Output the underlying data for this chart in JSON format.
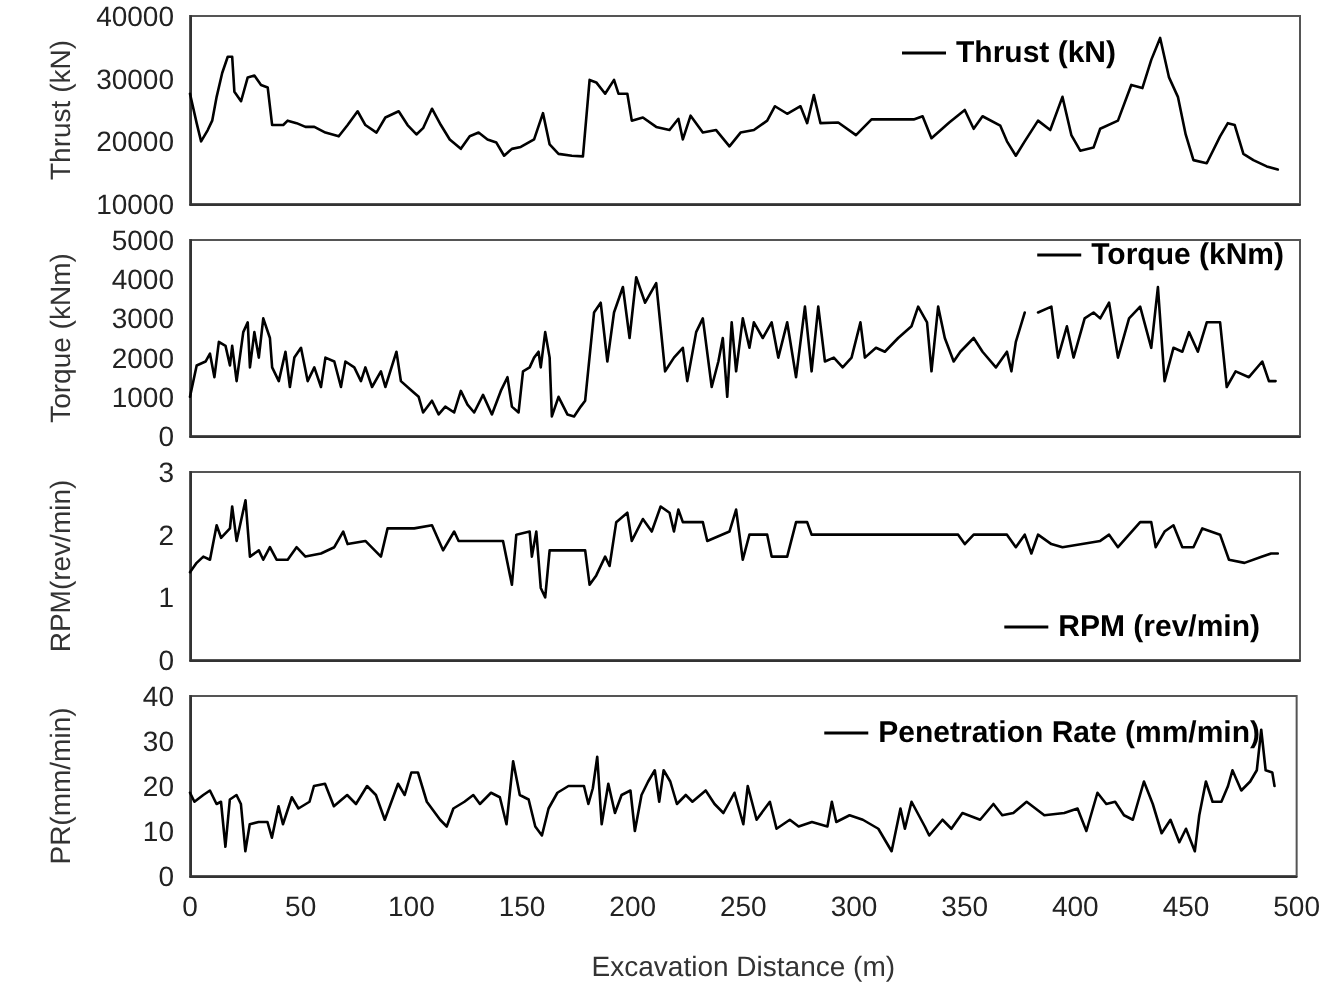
{
  "chart_data": [
    {
      "type": "line",
      "ylabel": "Thrust (kN)",
      "xlim": [
        0,
        500
      ],
      "ylim": [
        10000,
        40000
      ],
      "yticks": [
        10000,
        20000,
        30000,
        40000
      ],
      "tick_labels": "y",
      "grid": false,
      "legend": "top right",
      "marker": "none",
      "line_style": "solid",
      "series": [
        {
          "name": "Thrust (kN)",
          "color": "#000000",
          "x": [
            0,
            3,
            5,
            8,
            10,
            12,
            14.5,
            17,
            19,
            20,
            23,
            26,
            29,
            32,
            35,
            37,
            42,
            44,
            48,
            52,
            56,
            61,
            67,
            71,
            75.5,
            79,
            84,
            88,
            94,
            98,
            102,
            105,
            109,
            113,
            117,
            122,
            126,
            130,
            134,
            138,
            141.5,
            145,
            149,
            155,
            159,
            162,
            166,
            172,
            177,
            180,
            183,
            187,
            191,
            193,
            197,
            199,
            204,
            210,
            216,
            220,
            222,
            225.5,
            231,
            237,
            243,
            248,
            254,
            260,
            263.5,
            269,
            275,
            278,
            281,
            284,
            292,
            300,
            307,
            319,
            326,
            330,
            334,
            342,
            349,
            353,
            357,
            365,
            368,
            372,
            376,
            382,
            387.5,
            393,
            397,
            401,
            407,
            410,
            418,
            424,
            429,
            433,
            437,
            441,
            445,
            448.5,
            452,
            458,
            464,
            467.5,
            470.6,
            474.5,
            479,
            485,
            490
          ],
          "values": [
            27600,
            22900,
            20000,
            21800,
            23300,
            27100,
            30900,
            33500,
            33500,
            27900,
            26400,
            30200,
            30500,
            29000,
            28600,
            22600,
            22600,
            23300,
            22900,
            22300,
            22300,
            21400,
            20800,
            22600,
            24800,
            22600,
            21400,
            23800,
            24800,
            22600,
            21100,
            22100,
            25200,
            22600,
            20300,
            18800,
            20800,
            21400,
            20300,
            19800,
            17700,
            18800,
            19100,
            20300,
            24500,
            19500,
            18000,
            17700,
            17600,
            29800,
            29400,
            27600,
            29800,
            27600,
            27600,
            23300,
            23800,
            22300,
            21800,
            23600,
            20300,
            24100,
            21400,
            21800,
            19200,
            21400,
            21800,
            23300,
            25600,
            24400,
            25600,
            22900,
            27400,
            22900,
            23000,
            21000,
            23500,
            23500,
            23500,
            24000,
            20500,
            23000,
            25000,
            22000,
            24000,
            22500,
            20000,
            17700,
            20000,
            23300,
            21800,
            27100,
            21000,
            18500,
            19000,
            22000,
            23300,
            29000,
            28500,
            33000,
            36500,
            30200,
            27100,
            21100,
            17000,
            16500,
            20800,
            22900,
            22600,
            18000,
            17000,
            16000,
            15500
          ]
        }
      ]
    },
    {
      "type": "line",
      "ylabel": "Torque (kNm)",
      "xlim": [
        0,
        500
      ],
      "ylim": [
        0,
        5000
      ],
      "yticks": [
        0,
        1000,
        2000,
        3000,
        4000,
        5000
      ],
      "tick_labels": "y",
      "grid": false,
      "legend": "top right",
      "marker": "none",
      "line_style": "solid",
      "series": [
        {
          "name": "Torque (kNm)",
          "color": "#000000",
          "x": [
            0,
            3,
            7,
            9,
            11,
            13,
            16,
            18,
            19,
            21,
            24,
            26,
            27,
            29,
            31,
            33,
            36,
            37,
            40,
            43,
            45,
            47,
            50,
            53,
            56,
            59,
            61,
            65,
            68,
            70,
            74,
            77,
            79,
            82,
            86,
            88,
            93,
            95,
            100,
            103,
            105,
            109,
            112,
            115,
            119,
            122,
            125,
            128,
            132,
            136,
            140,
            143,
            145,
            148,
            150,
            153,
            155,
            157,
            158,
            160,
            162,
            163,
            166,
            170,
            173,
            176,
            178,
            182,
            185,
            188,
            191,
            195,
            198,
            201,
            205,
            210,
            214,
            218,
            222,
            224,
            228,
            231,
            235,
            238,
            240,
            242,
            244,
            246,
            249,
            252,
            254,
            258,
            262,
            265,
            269,
            273,
            277,
            280,
            283,
            286,
            290,
            294,
            298,
            302,
            304,
            309,
            313,
            319,
            325,
            328,
            332,
            334,
            337,
            340,
            344,
            347,
            353,
            357,
            363,
            368,
            370,
            372,
            376,
            379,
            382,
            388,
            391,
            395,
            398,
            403,
            407,
            410,
            414,
            418,
            423,
            428,
            433,
            436,
            439,
            443,
            447,
            450,
            454,
            458,
            464,
            467,
            471,
            477,
            483,
            486,
            489
          ],
          "values": [
            1000,
            1800,
            1900,
            2100,
            1500,
            2400,
            2300,
            1800,
            2300,
            1400,
            2650,
            2900,
            1750,
            2650,
            2000,
            3000,
            2500,
            1750,
            1400,
            2150,
            1250,
            2000,
            2250,
            1400,
            1750,
            1250,
            2000,
            1900,
            1250,
            1900,
            1750,
            1400,
            1750,
            1250,
            1650,
            1250,
            2150,
            1400,
            1150,
            1000,
            600,
            900,
            550,
            750,
            600,
            1150,
            800,
            600,
            1050,
            550,
            1150,
            1500,
            750,
            600,
            1650,
            1750,
            2000,
            2150,
            1750,
            2650,
            2000,
            500,
            1000,
            550,
            500,
            750,
            900,
            3150,
            3400,
            1900,
            3150,
            3800,
            2500,
            4050,
            3400,
            3900,
            1650,
            2000,
            2250,
            1400,
            2650,
            3000,
            1250,
            1900,
            2500,
            1000,
            2900,
            1650,
            3000,
            2250,
            2900,
            2500,
            2900,
            2000,
            2900,
            1500,
            3300,
            1650,
            3300,
            1900,
            2000,
            1750,
            2000,
            2900,
            2000,
            2250,
            2150,
            2500,
            2800,
            3300,
            2900,
            1650,
            3300,
            2500,
            1900,
            2150,
            2500,
            2150,
            1750,
            2150,
            1650,
            2400,
            3150,
            null,
            3150,
            3300,
            2000,
            2800,
            2000,
            3000,
            3150,
            3000,
            3400,
            2000,
            3000,
            3300,
            2250,
            3800,
            1400,
            2250,
            2150,
            2650,
            2150,
            2900,
            2900,
            1250,
            1650,
            1500,
            1900,
            1400,
            1400
          ]
        }
      ]
    },
    {
      "type": "line",
      "ylabel": "RPM(rev/min)",
      "xlim": [
        0,
        500
      ],
      "ylim": [
        0,
        3
      ],
      "yticks": [
        0,
        1,
        2,
        3
      ],
      "tick_labels": "y",
      "grid": false,
      "legend": "bottom right",
      "marker": "none",
      "line_style": "solid",
      "series": [
        {
          "name": "RPM (rev/min)",
          "color": "#000000",
          "x": [
            0,
            3,
            6,
            9,
            12,
            14,
            18,
            19,
            21,
            25,
            27,
            31,
            33,
            36,
            39,
            44,
            48,
            52,
            59,
            65,
            69,
            71,
            79,
            86,
            89,
            94,
            101,
            109,
            114,
            119,
            121,
            141,
            145,
            147,
            153,
            154,
            156,
            158,
            160,
            162,
            178,
            180,
            183,
            187,
            189,
            192,
            197,
            199,
            204,
            208,
            212,
            216,
            218,
            220,
            222,
            231,
            233,
            243,
            246,
            249,
            252,
            260,
            262,
            269,
            273,
            278,
            280,
            288,
            346,
            349,
            353,
            368,
            372,
            376,
            379,
            382,
            388,
            393,
            410,
            414,
            418,
            428,
            433,
            435,
            439,
            443,
            447,
            452,
            456,
            464,
            468,
            475,
            483,
            487,
            490
          ],
          "values": [
            1.4,
            1.55,
            1.65,
            1.6,
            2.15,
            1.95,
            2.1,
            2.45,
            1.9,
            2.55,
            1.65,
            1.75,
            1.6,
            1.8,
            1.6,
            1.6,
            1.8,
            1.65,
            1.7,
            1.8,
            2.05,
            1.85,
            1.9,
            1.65,
            2.1,
            2.1,
            2.1,
            2.15,
            1.75,
            2.05,
            1.9,
            1.9,
            1.2,
            2.0,
            2.05,
            1.65,
            2.05,
            1.15,
            1.0,
            1.75,
            1.75,
            1.2,
            1.35,
            1.65,
            1.5,
            2.2,
            2.35,
            1.9,
            2.25,
            2.05,
            2.45,
            2.35,
            2.05,
            2.4,
            2.2,
            2.2,
            1.9,
            2.05,
            2.4,
            1.6,
            2.0,
            2.0,
            1.65,
            1.65,
            2.2,
            2.2,
            2.0,
            2.0,
            2.0,
            1.85,
            2.0,
            2.0,
            1.8,
            2.0,
            1.7,
            2.0,
            1.85,
            1.8,
            1.9,
            2.0,
            1.8,
            2.2,
            2.2,
            1.8,
            2.05,
            2.15,
            1.8,
            1.8,
            2.1,
            2.0,
            1.6,
            1.55,
            1.65,
            1.7,
            1.7
          ]
        }
      ]
    },
    {
      "type": "line",
      "xlabel": "Excavation Distance (m)",
      "ylabel": "PR(mm/min)",
      "xlim": [
        0,
        500
      ],
      "xticks": [
        0,
        50,
        100,
        150,
        200,
        250,
        300,
        350,
        400,
        450,
        500
      ],
      "ylim": [
        0,
        40
      ],
      "yticks": [
        0,
        10,
        20,
        30,
        40
      ],
      "grid": false,
      "legend": "top right",
      "marker": "none",
      "line_style": "solid",
      "series": [
        {
          "name": "Penetration Rate (mm/min)",
          "color": "#000000",
          "x": [
            0,
            2,
            6,
            9,
            12,
            14,
            16,
            18,
            21,
            23,
            25,
            27,
            31,
            35,
            37,
            40,
            42,
            46,
            49,
            54,
            56,
            61,
            65,
            71,
            75,
            80,
            84,
            88,
            94,
            97,
            100,
            103,
            107,
            113,
            116,
            119,
            124,
            128,
            131,
            136,
            140,
            143,
            146,
            149,
            153,
            156,
            159,
            162,
            166,
            171,
            178,
            180,
            182,
            184,
            186,
            189,
            192,
            195,
            199,
            201,
            204,
            207,
            210,
            212,
            214,
            217,
            220,
            224,
            227,
            233,
            237,
            241,
            246,
            250,
            252,
            256,
            262,
            265,
            271,
            275,
            281,
            288,
            290,
            292,
            298,
            304,
            311,
            317,
            321,
            323,
            326,
            332,
            334,
            340,
            344,
            349,
            357,
            363,
            367,
            372,
            378,
            386,
            395,
            401,
            405,
            410,
            414,
            418,
            422,
            426,
            431,
            435,
            439,
            443,
            447,
            450,
            454,
            456,
            459,
            462,
            466,
            469,
            471,
            475,
            479,
            482,
            484,
            486,
            489,
            490
          ],
          "values": [
            18.5,
            16.5,
            18,
            19,
            16,
            16.5,
            6.5,
            17,
            18,
            16,
            5.5,
            11.5,
            12,
            12,
            8.5,
            15.5,
            11.5,
            17.5,
            15,
            16.5,
            20,
            20.5,
            15.5,
            18,
            16,
            20,
            18,
            12.5,
            20.5,
            18,
            23,
            23,
            16.5,
            12.5,
            11,
            15,
            16.5,
            18,
            16,
            18.5,
            17.5,
            11.5,
            25.5,
            18,
            17,
            11,
            9,
            15,
            18.5,
            20,
            20,
            16,
            19.5,
            26.5,
            11.5,
            20.5,
            14,
            18,
            19,
            10,
            18,
            21,
            23.5,
            16.5,
            23.5,
            21,
            16,
            18,
            16.5,
            19,
            16,
            14,
            18.5,
            11.5,
            20,
            12.5,
            16.5,
            10.5,
            12.5,
            11,
            12,
            11,
            16.5,
            12,
            13.5,
            12.5,
            10.5,
            5.5,
            15,
            10.5,
            16.5,
            11,
            9,
            12.5,
            10.5,
            14,
            12.5,
            16,
            13.5,
            14,
            16.5,
            13.5,
            14,
            15,
            10,
            18.5,
            16,
            16.5,
            13.5,
            12.5,
            21,
            16,
            9.5,
            12.5,
            7.5,
            10.5,
            5.5,
            13.5,
            21,
            16.5,
            16.5,
            20,
            23.5,
            19,
            21,
            23.5,
            32.5,
            23.5,
            23,
            20
          ]
        }
      ]
    }
  ]
}
